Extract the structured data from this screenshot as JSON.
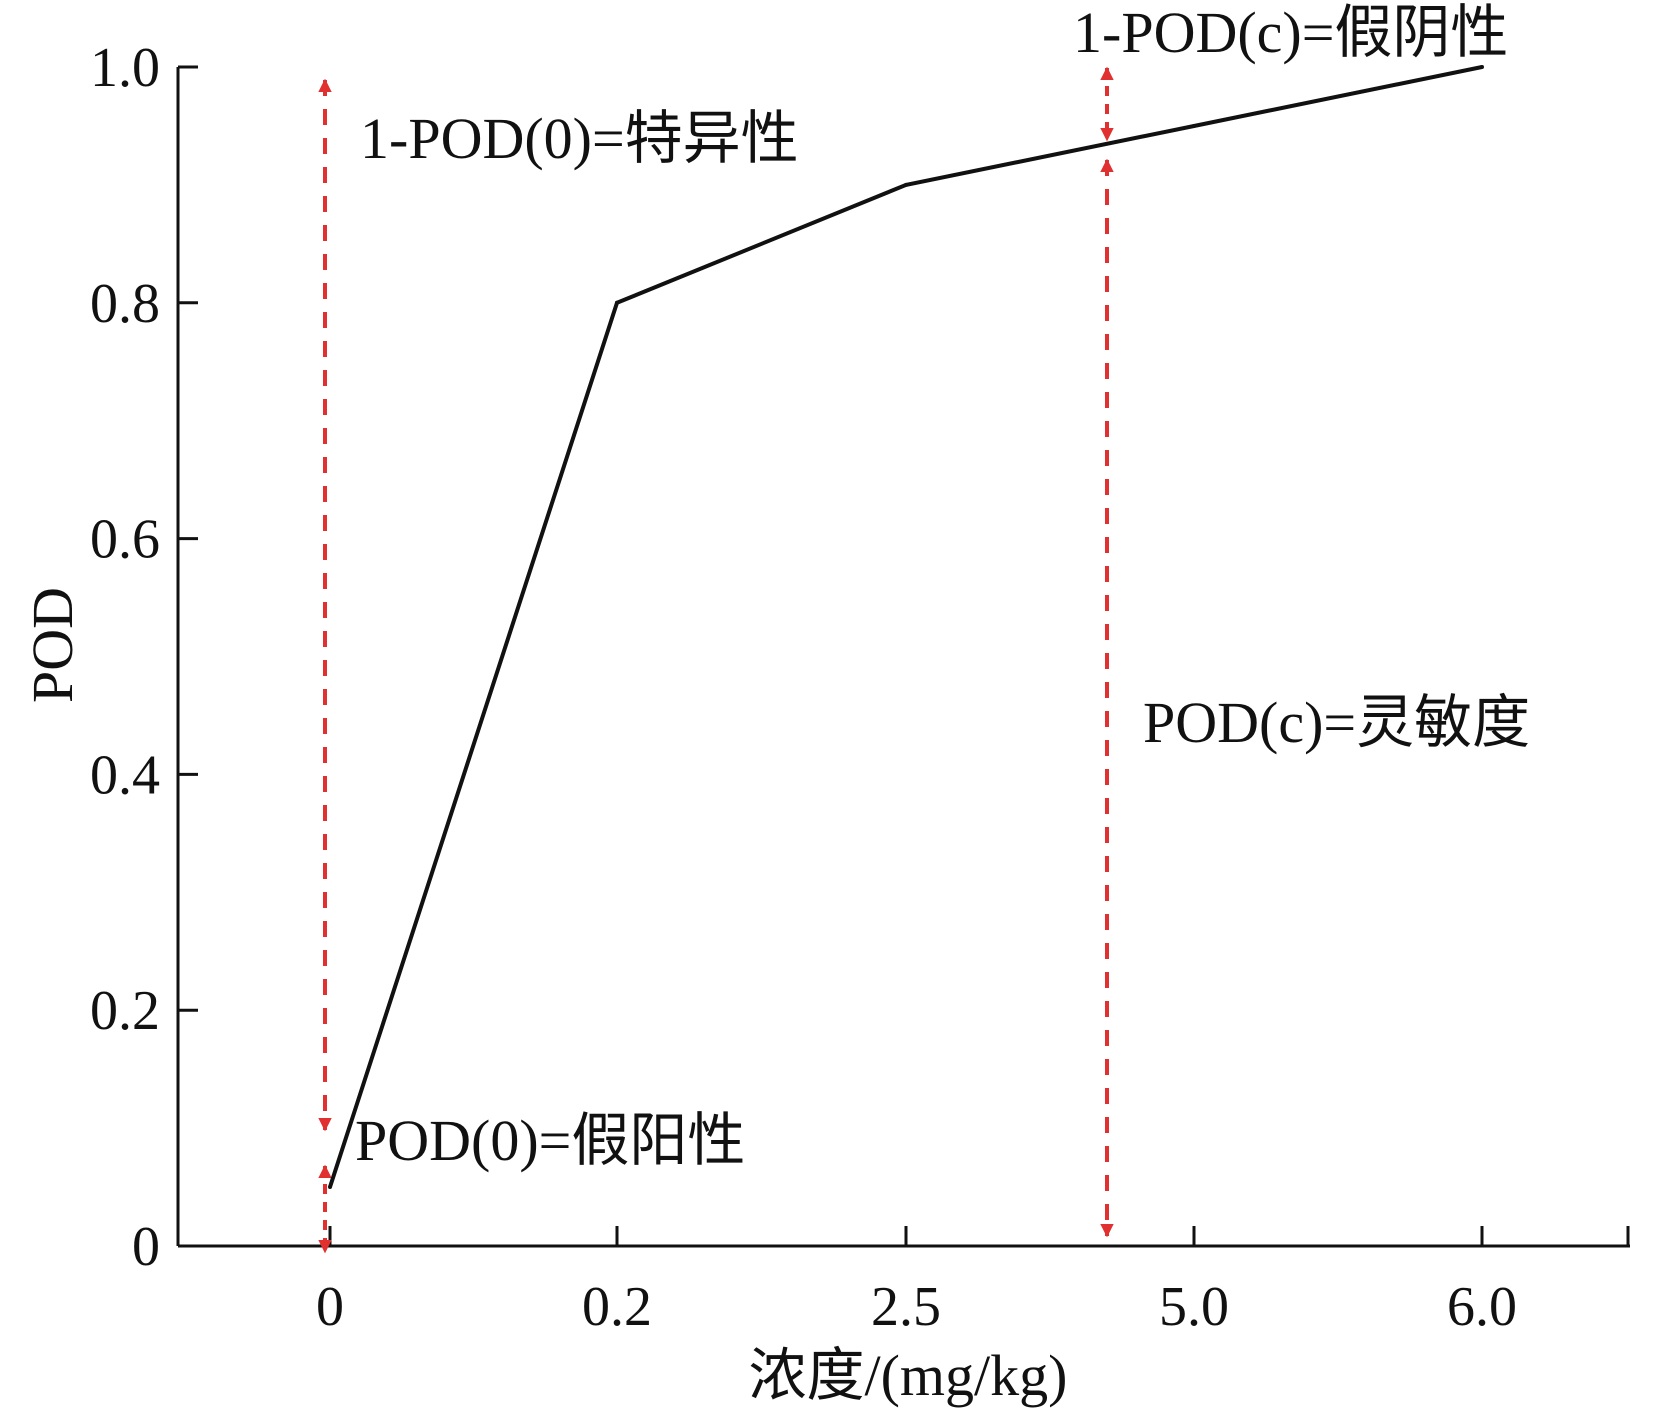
{
  "chart_data": {
    "type": "line",
    "xlabel": "浓度/(mg/kg)",
    "ylabel": "POD",
    "categories": [
      "0",
      "0.2",
      "2.5",
      "5.0",
      "6.0"
    ],
    "yticks": [
      "0",
      "0.2",
      "0.4",
      "0.6",
      "0.8",
      "1.0"
    ],
    "ylim": [
      0,
      1.0
    ],
    "grid": false,
    "series": [
      {
        "values": [
          0.05,
          0.8,
          0.9,
          0.95,
          1.0
        ]
      }
    ],
    "annotations": [
      {
        "text": "1-POD(0)=特异性"
      },
      {
        "text": "POD(0)=假阳性"
      },
      {
        "text": "1-POD(c)=假阴性"
      },
      {
        "text": "POD(c)=灵敏度"
      }
    ],
    "colors": {
      "curve": "#111111",
      "axis": "#111111",
      "arrow": "#e03030"
    }
  }
}
